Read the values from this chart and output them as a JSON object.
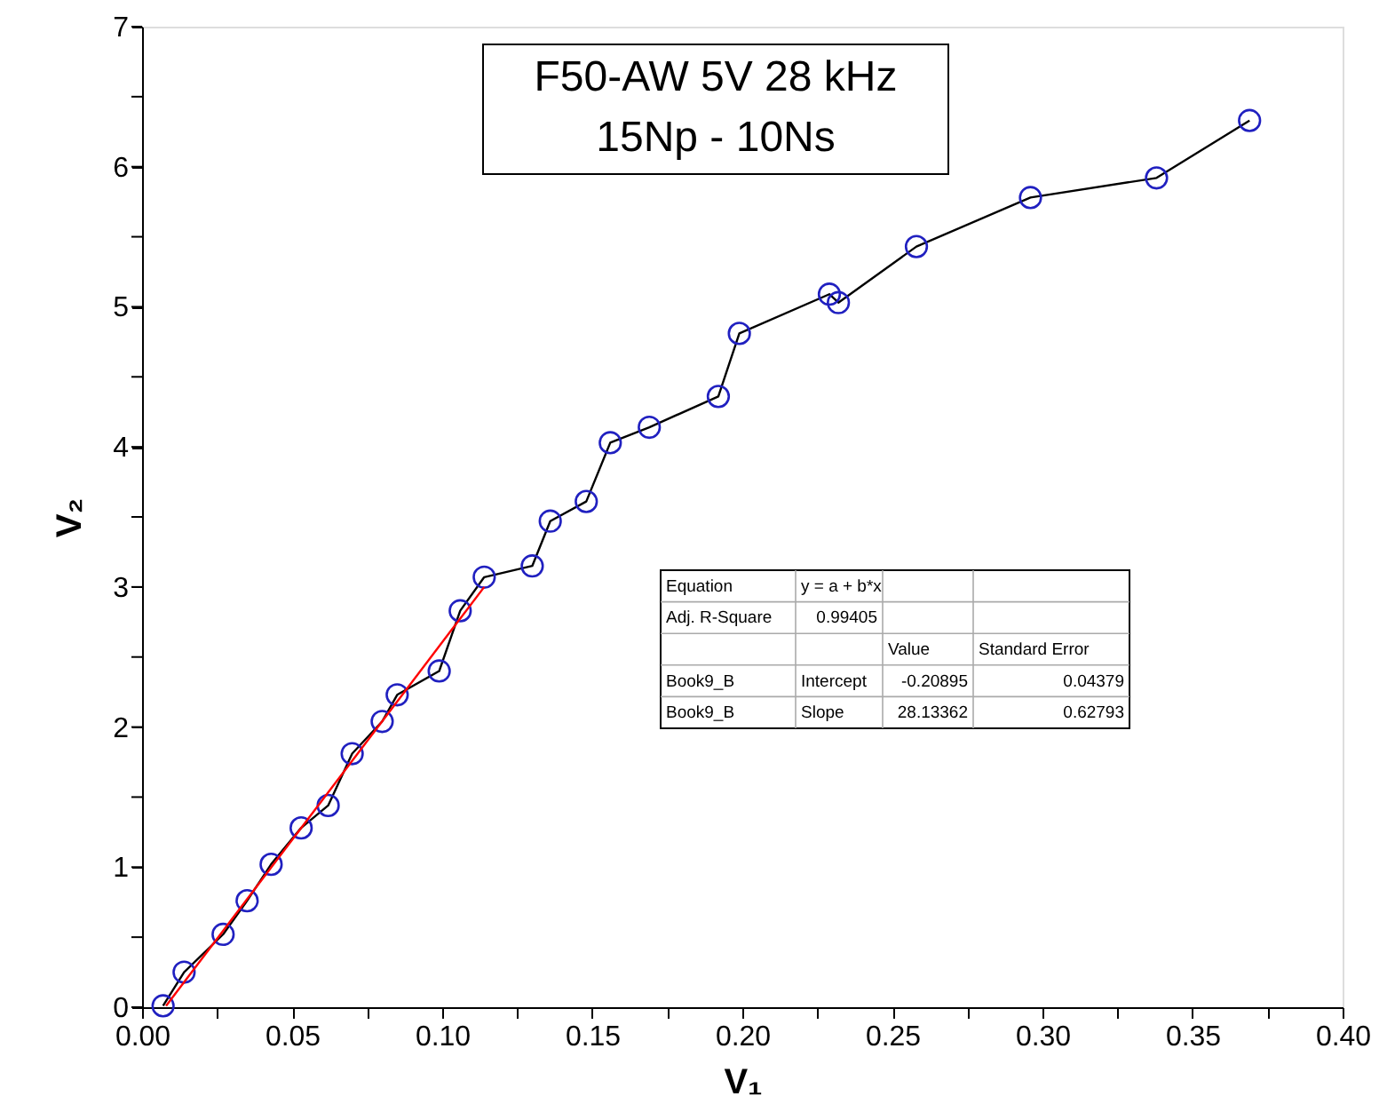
{
  "chart_data": {
    "type": "line",
    "title": "F50-AW  5V  28 kHz",
    "subtitle": "15Np - 10Ns",
    "xlabel": "V₁",
    "ylabel": "V₂",
    "xlim": [
      0.0,
      0.4
    ],
    "ylim": [
      0,
      7
    ],
    "xticks": [
      {
        "value": 0.0,
        "label": "0.00"
      },
      {
        "value": 0.025,
        "label": null
      },
      {
        "value": 0.05,
        "label": "0.05"
      },
      {
        "value": 0.075,
        "label": null
      },
      {
        "value": 0.1,
        "label": "0.10"
      },
      {
        "value": 0.125,
        "label": null
      },
      {
        "value": 0.15,
        "label": "0.15"
      },
      {
        "value": 0.175,
        "label": null
      },
      {
        "value": 0.2,
        "label": "0.20"
      },
      {
        "value": 0.225,
        "label": null
      },
      {
        "value": 0.25,
        "label": "0.25"
      },
      {
        "value": 0.275,
        "label": null
      },
      {
        "value": 0.3,
        "label": "0.30"
      },
      {
        "value": 0.325,
        "label": null
      },
      {
        "value": 0.35,
        "label": "0.35"
      },
      {
        "value": 0.375,
        "label": null
      },
      {
        "value": 0.4,
        "label": "0.40"
      }
    ],
    "yticks": [
      0,
      {
        "value": 0.5,
        "label": null
      },
      1,
      {
        "value": 1.5,
        "label": null
      },
      2,
      {
        "value": 2.5,
        "label": null
      },
      3,
      {
        "value": 3.5,
        "label": null
      },
      4,
      {
        "value": 4.5,
        "label": null
      },
      5,
      {
        "value": 5.5,
        "label": null
      },
      6,
      {
        "value": 6.5,
        "label": null
      },
      7
    ],
    "grid": false,
    "legend": false,
    "series": [
      {
        "type": "line",
        "color": "#000000",
        "line_style": "solid",
        "marker": "none",
        "x": [
          0.007,
          0.014,
          0.027,
          0.035,
          0.043,
          0.053,
          0.062,
          0.07,
          0.08,
          0.085,
          0.099,
          0.106,
          0.114,
          0.13,
          0.136,
          0.148,
          0.156,
          0.169,
          0.192,
          0.199,
          0.229,
          0.232,
          0.258,
          0.296,
          0.338,
          0.369
        ],
        "values": [
          0.01,
          0.25,
          0.52,
          0.76,
          1.02,
          1.28,
          1.44,
          1.81,
          2.04,
          2.23,
          2.4,
          2.83,
          3.07,
          3.15,
          3.47,
          3.61,
          4.03,
          4.14,
          4.36,
          4.81,
          5.09,
          5.03,
          5.43,
          5.78,
          5.92,
          6.33
        ]
      },
      {
        "type": "scatter",
        "color": "#2020c0",
        "marker": "circle",
        "x": [
          0.007,
          0.014,
          0.027,
          0.035,
          0.043,
          0.053,
          0.062,
          0.07,
          0.08,
          0.085,
          0.099,
          0.106,
          0.114,
          0.13,
          0.136,
          0.148,
          0.156,
          0.169,
          0.192,
          0.199,
          0.229,
          0.232,
          0.258,
          0.296,
          0.338,
          0.369
        ],
        "values": [
          0.01,
          0.25,
          0.52,
          0.76,
          1.02,
          1.28,
          1.44,
          1.81,
          2.04,
          2.23,
          2.4,
          2.83,
          3.07,
          3.15,
          3.47,
          3.61,
          4.03,
          4.14,
          4.36,
          4.81,
          5.09,
          5.03,
          5.43,
          5.78,
          5.92,
          6.33
        ]
      },
      {
        "type": "line",
        "color": "#ff0000",
        "line_style": "solid",
        "marker": "none",
        "x": [
          0.008,
          0.114
        ],
        "values": [
          0.01,
          3.0
        ]
      }
    ],
    "annotations": [
      "Equation",
      "y = a + b*x",
      "Adj. R-Square",
      "0.99405",
      "Value",
      "Standard Error",
      "Book9_B",
      "Intercept",
      "-0.20895",
      "0.04379",
      "Book9_B",
      "Slope",
      "28.13362",
      "0.62793"
    ]
  }
}
